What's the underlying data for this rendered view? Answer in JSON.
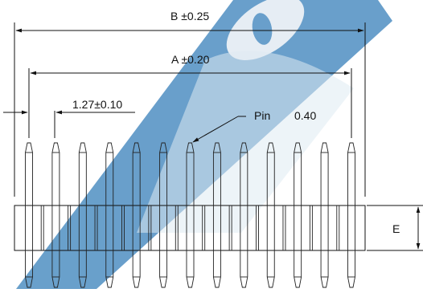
{
  "drawing": {
    "dim_b": "B ±0.25",
    "dim_a": "A ±0.20",
    "pitch": "1.27±0.10",
    "pin_label": "Pin",
    "pin_value": "0.40",
    "dim_e": "E",
    "pin_count": 13
  },
  "colors": {
    "line": "#111111",
    "watermark": "#4a8fc0"
  }
}
